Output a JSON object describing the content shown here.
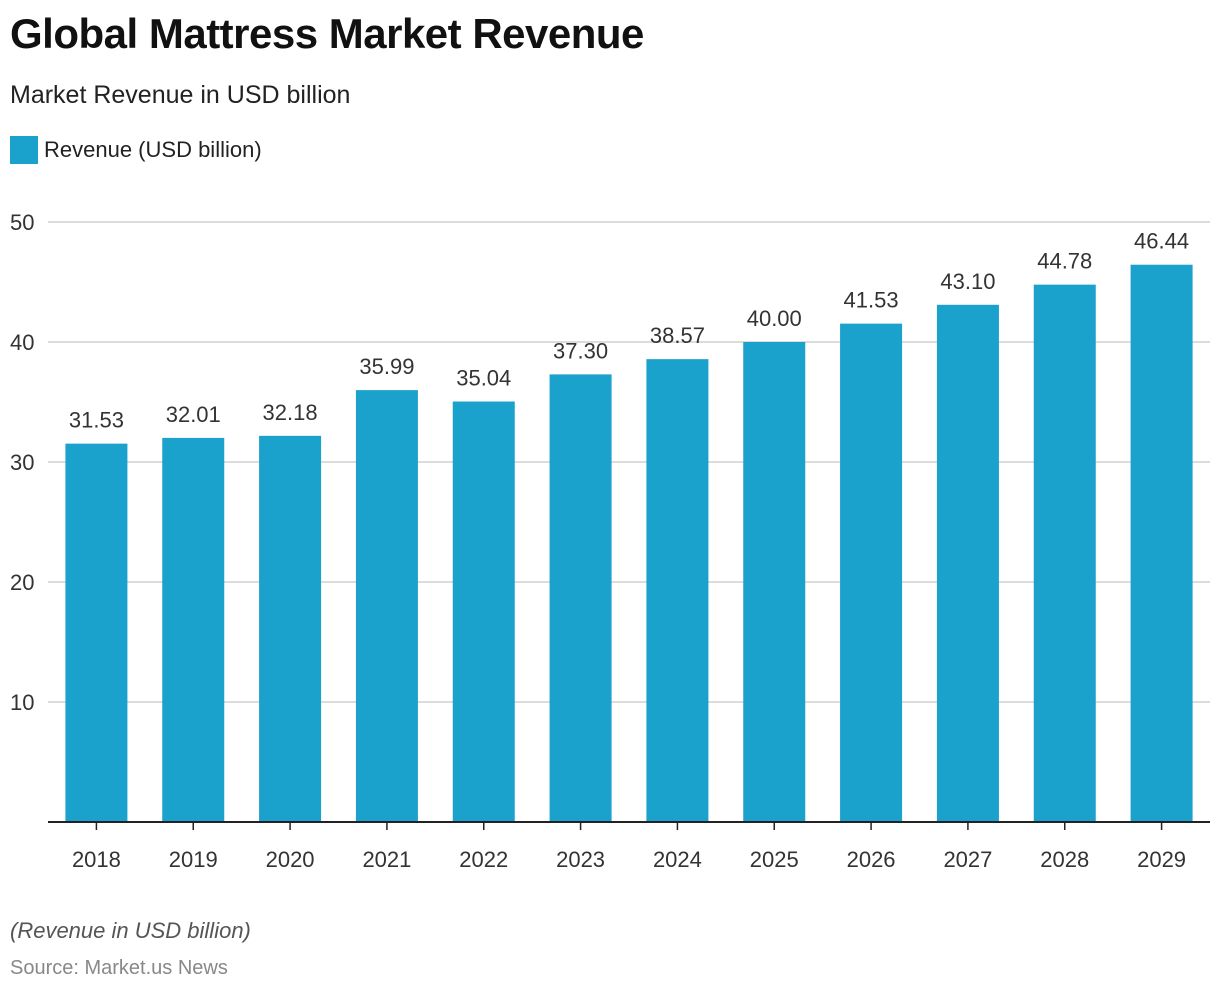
{
  "chart_data": {
    "type": "bar",
    "title": "Global Mattress Market Revenue",
    "subtitle": "Market Revenue in USD billion",
    "series_name": "Revenue (USD billion)",
    "categories": [
      "2018",
      "2019",
      "2020",
      "2021",
      "2022",
      "2023",
      "2024",
      "2025",
      "2026",
      "2027",
      "2028",
      "2029"
    ],
    "values": [
      31.53,
      32.01,
      32.18,
      35.99,
      35.04,
      37.3,
      38.57,
      40.0,
      41.53,
      43.1,
      44.78,
      46.44
    ],
    "value_labels": [
      "31.53",
      "32.01",
      "32.18",
      "35.99",
      "35.04",
      "37.30",
      "38.57",
      "40.00",
      "41.53",
      "43.10",
      "44.78",
      "46.44"
    ],
    "ylim": [
      0,
      50
    ],
    "yticks": [
      10,
      20,
      30,
      40,
      50
    ],
    "grid": true,
    "legend_position": "top-left",
    "bar_color": "#1aa1cc",
    "grid_color": "#d0d0d0",
    "axis_color": "#222222"
  },
  "footer": {
    "note": "(Revenue in USD billion)",
    "source": "Source: Market.us News"
  }
}
